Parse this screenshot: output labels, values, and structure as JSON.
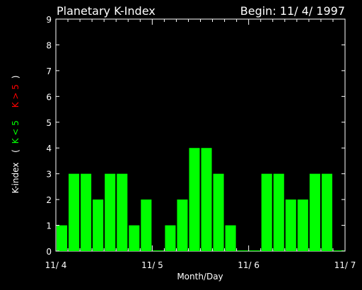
{
  "chart_data": {
    "type": "bar",
    "title": "Planetary K-Index",
    "begin_label": "Begin: 11/ 4/ 1997",
    "xlabel": "Month/Day",
    "ylabel": {
      "prefix": "K-index",
      "open": "(",
      "low": "K < 5",
      "high": "K > 5",
      "close": ")"
    },
    "ylim": [
      0,
      9
    ],
    "yticks": [
      "0",
      "1",
      "2",
      "3",
      "4",
      "5",
      "6",
      "7",
      "8",
      "9"
    ],
    "xticks": [
      "11/ 4",
      "11/ 5",
      "11/ 6",
      "11/ 7"
    ],
    "intervals_per_day": 8,
    "values": [
      1,
      3,
      3,
      2,
      3,
      3,
      1,
      2,
      0,
      1,
      2,
      4,
      4,
      3,
      1,
      0,
      0,
      3,
      3,
      2,
      2,
      3,
      3,
      0
    ],
    "threshold": 5,
    "colors": {
      "background": "#000000",
      "axes": "#ffffff",
      "text": "#ffffff",
      "bar_low": "#00ff00",
      "bar_high": "#ff0000",
      "label_low": "#00ff00",
      "label_high": "#ff0000"
    }
  }
}
